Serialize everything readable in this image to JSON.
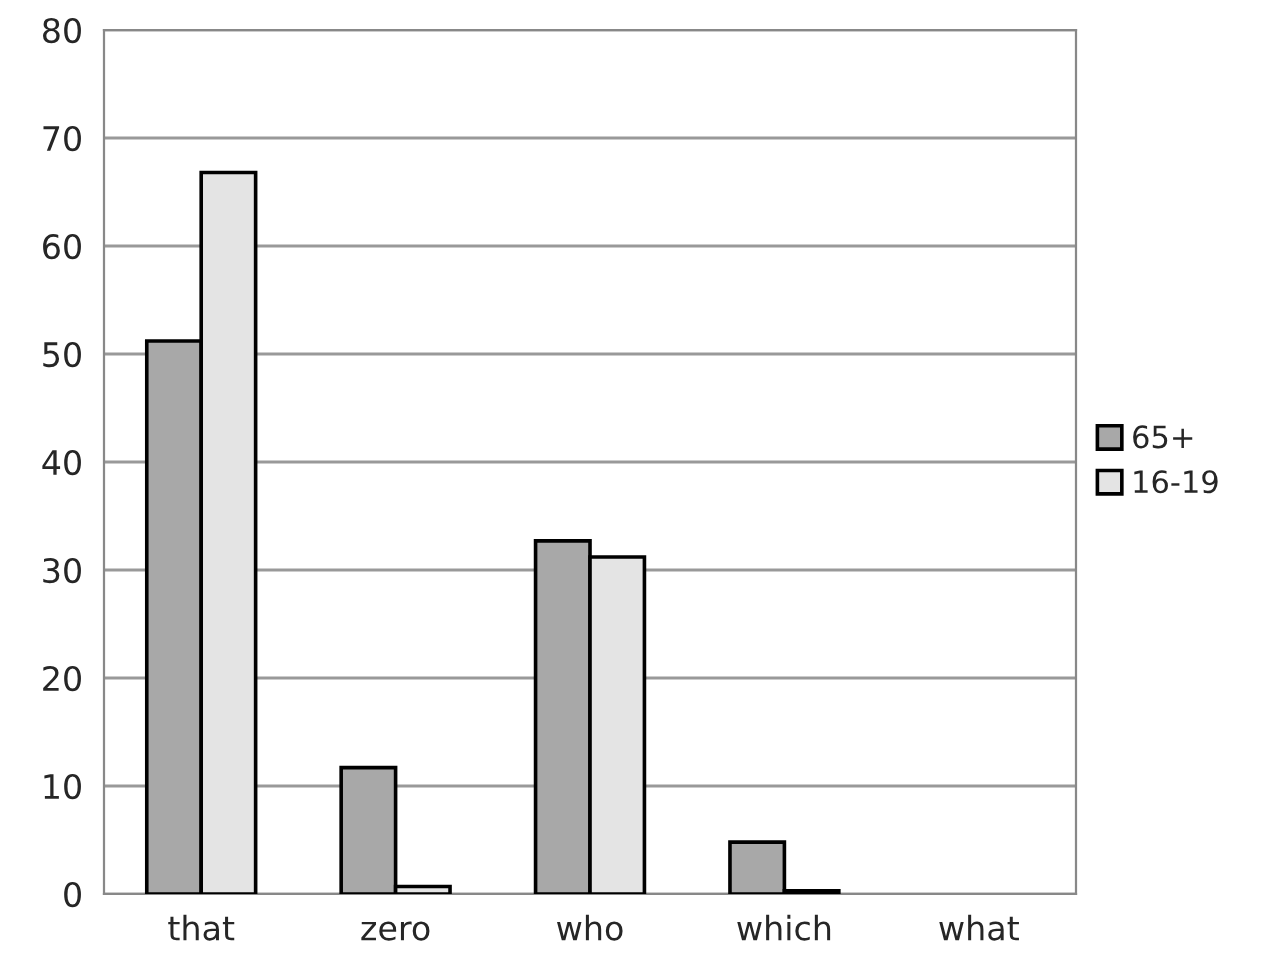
{
  "chart_data": {
    "type": "bar",
    "categories": [
      "that",
      "zero",
      "who",
      "which",
      "what"
    ],
    "series": [
      {
        "name": "65+",
        "color": "#a8a8a8",
        "values": [
          51.2,
          11.7,
          32.7,
          4.8,
          0
        ]
      },
      {
        "name": "16-19",
        "color": "#e4e4e4",
        "values": [
          66.8,
          0.7,
          31.2,
          0.3,
          0
        ]
      }
    ],
    "ylim": [
      0,
      80
    ],
    "yticks": [
      0,
      10,
      20,
      30,
      40,
      50,
      60,
      70,
      80
    ],
    "grid": "y",
    "legend": "right"
  }
}
